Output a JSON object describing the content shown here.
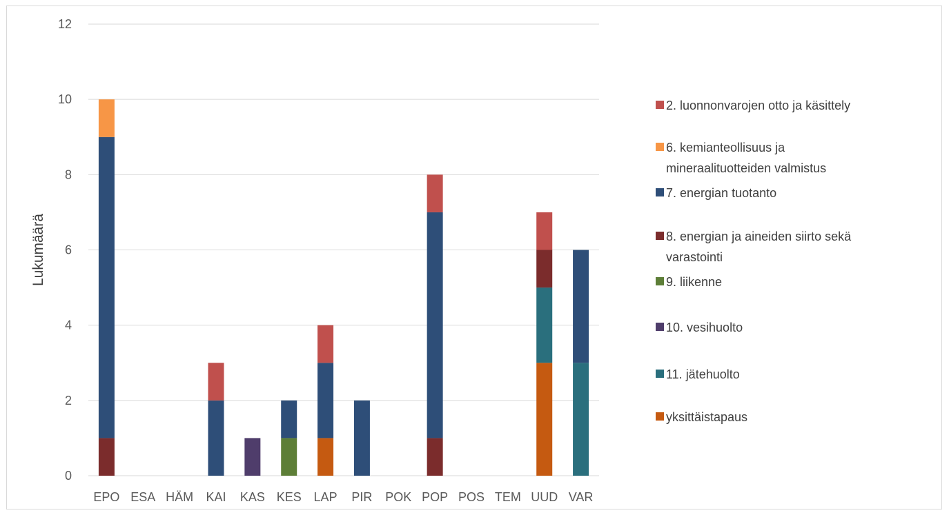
{
  "chart_data": {
    "type": "bar",
    "stacked": true,
    "title": "",
    "xlabel": "",
    "ylabel": "Lukumäärä",
    "ylim": [
      0,
      12
    ],
    "yticks": [
      0,
      2,
      4,
      6,
      8,
      10,
      12
    ],
    "grid": "horizontal",
    "legend_position": "right",
    "categories": [
      "EPO",
      "ESA",
      "HÄM",
      "KAI",
      "KAS",
      "KES",
      "LAP",
      "PIR",
      "POK",
      "POP",
      "POS",
      "TEM",
      "UUD",
      "VAR"
    ],
    "series": [
      {
        "name": "yksittäistapaus",
        "color": "#c55a11",
        "values": [
          0,
          0,
          0,
          0,
          0,
          0,
          1,
          0,
          0,
          0,
          0,
          0,
          3,
          0
        ]
      },
      {
        "name": "11. jätehuolto",
        "color": "#2a6f7d",
        "values": [
          0,
          0,
          0,
          0,
          0,
          0,
          0,
          0,
          0,
          0,
          0,
          0,
          2,
          3
        ]
      },
      {
        "name": "10. vesihuolto",
        "color": "#4f3d6b",
        "values": [
          0,
          0,
          0,
          0,
          1,
          0,
          0,
          0,
          0,
          0,
          0,
          0,
          0,
          0
        ]
      },
      {
        "name": "9. liikenne",
        "color": "#5d7e37",
        "values": [
          0,
          0,
          0,
          0,
          0,
          1,
          0,
          0,
          0,
          0,
          0,
          0,
          0,
          0
        ]
      },
      {
        "name": "8. energian ja aineiden siirto sekä varastointi",
        "color": "#7b2c2c",
        "values": [
          1,
          0,
          0,
          0,
          0,
          0,
          0,
          0,
          0,
          1,
          0,
          0,
          1,
          0
        ]
      },
      {
        "name": "7. energian tuotanto",
        "color": "#2e4e78",
        "values": [
          8,
          0,
          0,
          2,
          0,
          1,
          2,
          2,
          0,
          6,
          0,
          0,
          0,
          3
        ]
      },
      {
        "name": "6. kemianteollisuus ja mineraalituotteiden valmistus",
        "color": "#f79646",
        "values": [
          1,
          0,
          0,
          0,
          0,
          0,
          0,
          0,
          0,
          0,
          0,
          0,
          0,
          0
        ]
      },
      {
        "name": "2. luonnonvarojen otto ja käsittely",
        "color": "#c0504d",
        "values": [
          0,
          0,
          0,
          1,
          0,
          0,
          1,
          0,
          0,
          1,
          0,
          0,
          1,
          0
        ]
      }
    ],
    "legend": [
      {
        "lines": [
          "2. luonnonvarojen otto ja käsittely"
        ],
        "color": "#c0504d"
      },
      {
        "lines": [
          "6. kemianteollisuus ja",
          "mineraalituotteiden valmistus"
        ],
        "color": "#f79646"
      },
      {
        "lines": [
          "7. energian tuotanto"
        ],
        "color": "#2e4e78"
      },
      {
        "lines": [
          "8. energian ja aineiden siirto sekä",
          "varastointi"
        ],
        "color": "#7b2c2c"
      },
      {
        "lines": [
          "9. liikenne"
        ],
        "color": "#5d7e37"
      },
      {
        "lines": [
          "10. vesihuolto"
        ],
        "color": "#4f3d6b"
      },
      {
        "lines": [
          "11. jätehuolto"
        ],
        "color": "#2a6f7d"
      },
      {
        "lines": [
          "yksittäistapaus"
        ],
        "color": "#c55a11"
      }
    ]
  }
}
